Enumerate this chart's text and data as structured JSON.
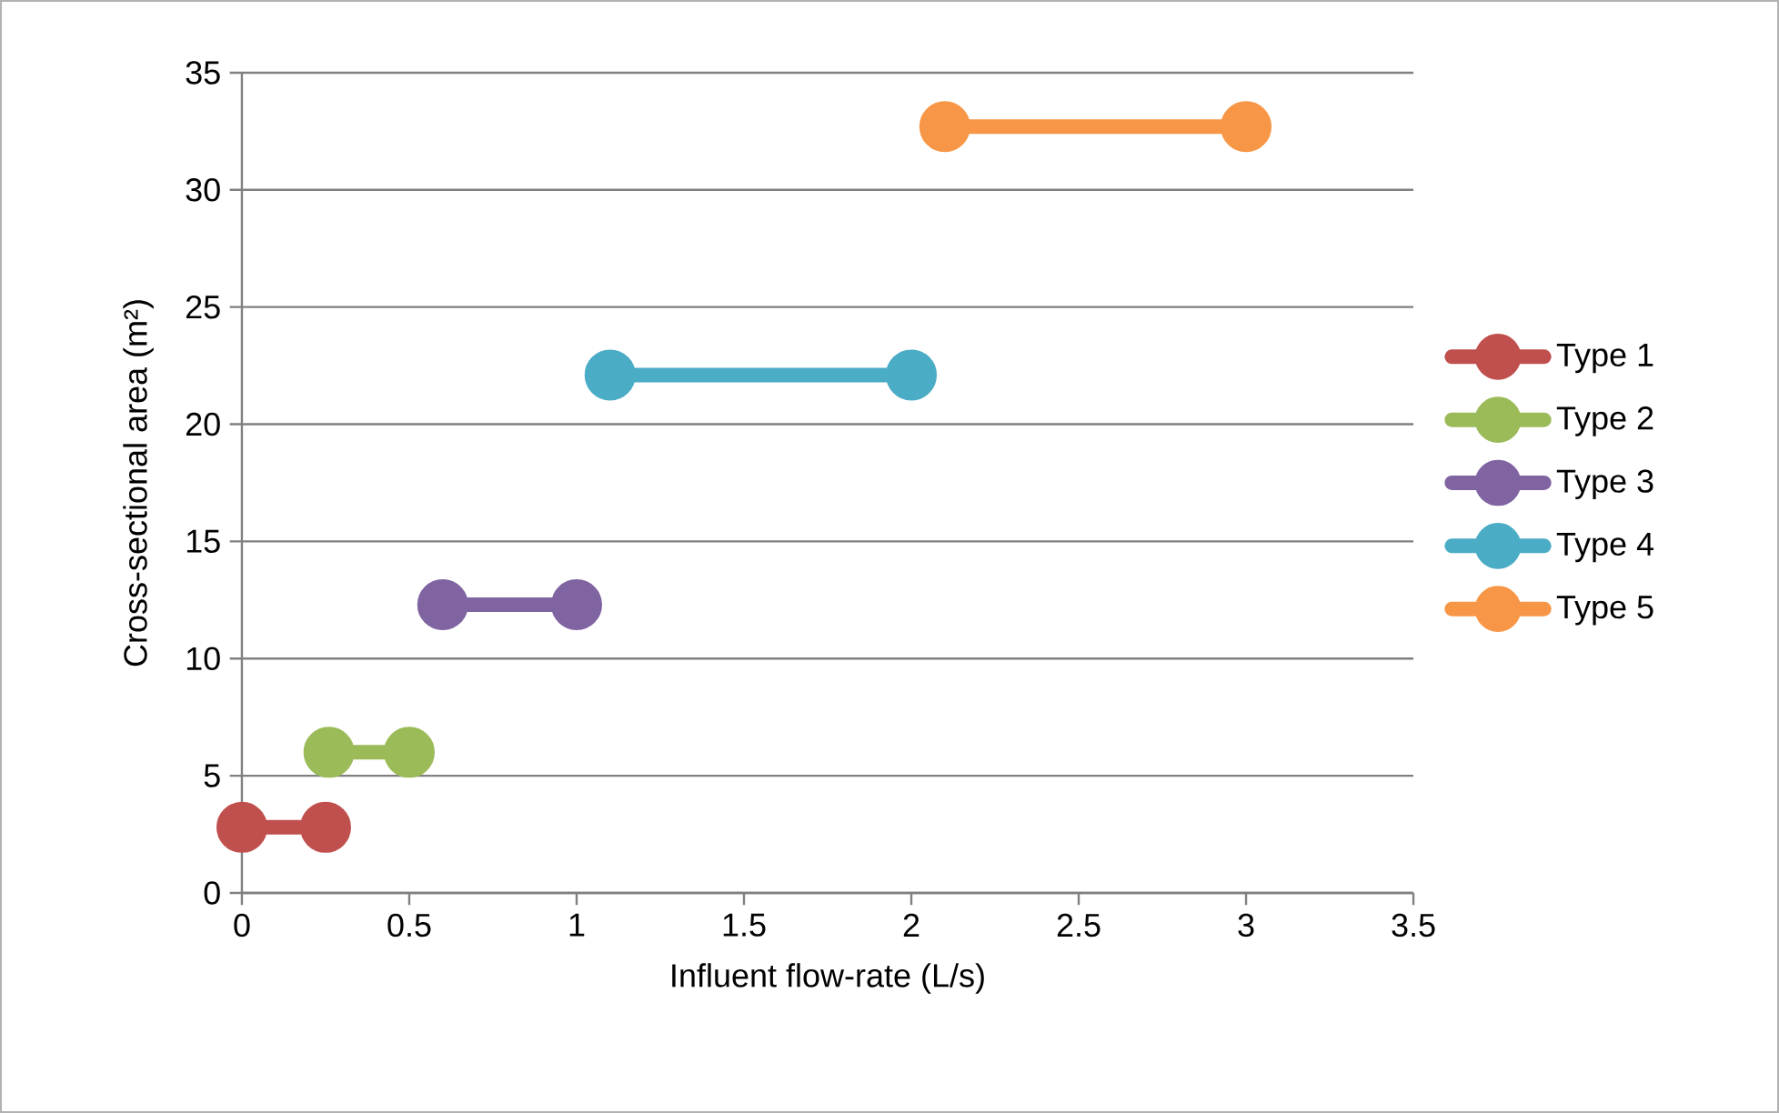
{
  "chart_data": {
    "type": "line",
    "xlabel": "Influent flow-rate (L/s)",
    "ylabel": "Cross-sectional area (m²)",
    "xlim": [
      0,
      3.5
    ],
    "xticks": [
      0,
      0.5,
      1,
      1.5,
      2,
      2.5,
      3,
      3.5
    ],
    "ylim": [
      0,
      35
    ],
    "yticks": [
      0,
      5,
      10,
      15,
      20,
      25,
      30,
      35
    ],
    "grid": "y",
    "legend": "right",
    "marker": "circle",
    "line_style": "solid",
    "series": [
      {
        "name": "Type 1",
        "color": "#c0504d",
        "x": [
          0,
          0.25
        ],
        "values": [
          2.8,
          2.8
        ]
      },
      {
        "name": "Type 2",
        "color": "#9bbb59",
        "x": [
          0.26,
          0.5
        ],
        "values": [
          6.0,
          6.0
        ]
      },
      {
        "name": "Type 3",
        "color": "#8064a2",
        "x": [
          0.6,
          1.0
        ],
        "values": [
          12.3,
          12.3
        ]
      },
      {
        "name": "Type 4",
        "color": "#4bacc6",
        "x": [
          1.1,
          2.0
        ],
        "values": [
          22.1,
          22.1
        ]
      },
      {
        "name": "Type 5",
        "color": "#f79646",
        "x": [
          2.1,
          3.0
        ],
        "values": [
          32.7,
          32.7
        ]
      }
    ]
  }
}
